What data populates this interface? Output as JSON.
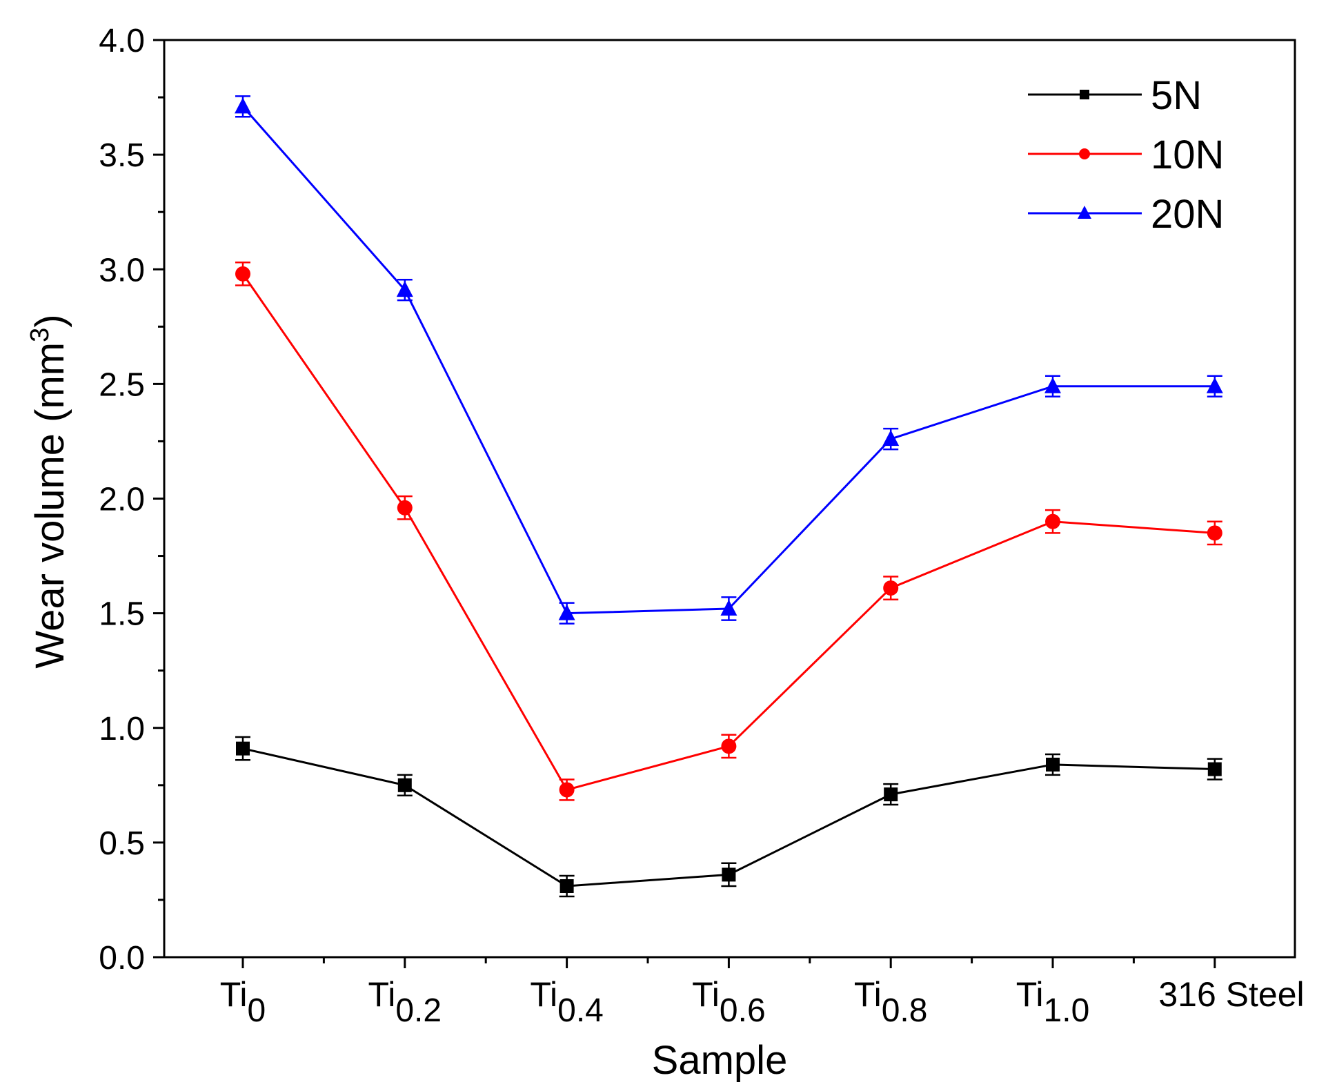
{
  "chart_data": {
    "type": "line",
    "title": "",
    "xlabel": "Sample",
    "ylabel": "Wear volume (mm",
    "ylabel_sup": "3",
    "ylabel_close": ")",
    "ylim": [
      0,
      4.0
    ],
    "yticks": [
      "0.0",
      "0.5",
      "1.0",
      "1.5",
      "2.0",
      "2.5",
      "3.0",
      "3.5",
      "4.0"
    ],
    "categories": [
      {
        "base": "Ti",
        "sub": "0"
      },
      {
        "base": "Ti",
        "sub": "0.2"
      },
      {
        "base": "Ti",
        "sub": "0.4"
      },
      {
        "base": "Ti",
        "sub": "0.6"
      },
      {
        "base": "Ti",
        "sub": "0.8"
      },
      {
        "base": "Ti",
        "sub": "1.0"
      },
      {
        "base": "316 Steel",
        "sub": ""
      }
    ],
    "legend_position": "top-right",
    "series": [
      {
        "name": "5N",
        "color": "#000000",
        "marker": "square",
        "values": [
          0.91,
          0.75,
          0.31,
          0.36,
          0.71,
          0.84,
          0.82
        ],
        "errors": [
          0.05,
          0.045,
          0.045,
          0.05,
          0.045,
          0.045,
          0.045
        ]
      },
      {
        "name": "10N",
        "color": "#ff0000",
        "marker": "circle",
        "values": [
          2.98,
          1.96,
          0.73,
          0.92,
          1.61,
          1.9,
          1.85
        ],
        "errors": [
          0.05,
          0.05,
          0.045,
          0.05,
          0.05,
          0.05,
          0.05
        ]
      },
      {
        "name": "20N",
        "color": "#0000ff",
        "marker": "triangle",
        "values": [
          3.71,
          2.91,
          1.5,
          1.52,
          2.26,
          2.49,
          2.49
        ],
        "errors": [
          0.045,
          0.045,
          0.045,
          0.05,
          0.045,
          0.045,
          0.045
        ]
      }
    ]
  }
}
